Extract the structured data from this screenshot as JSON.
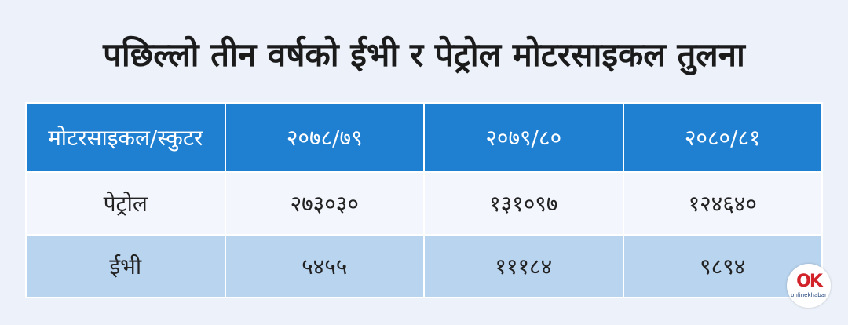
{
  "header": {
    "title": "पछिल्लो तीन वर्षको ईभी र पेट्रोल मोटरसाइकल तुलना"
  },
  "table": {
    "columns": [
      "मोटरसाइकल/स्कुटर",
      "२०७८/७९",
      "२०७९/८०",
      "२०८०/८१"
    ],
    "rows": [
      [
        "पेट्रोल",
        "२७३०३०",
        "१३१०९७",
        "१२४६४०"
      ],
      [
        "ईभी",
        "५४५५",
        "१११८४",
        "९८९४"
      ]
    ]
  },
  "logo": {
    "mark": "OK",
    "text": "onlinekhabar"
  }
}
